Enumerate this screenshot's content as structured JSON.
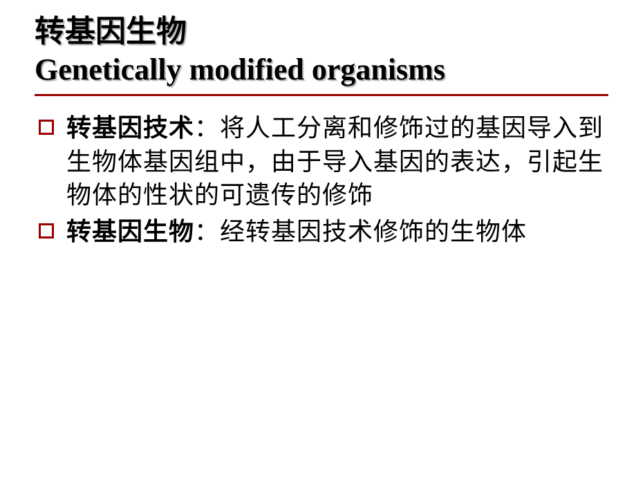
{
  "slide": {
    "title_cn": "转基因生物",
    "title_en": "Genetically modified organisms",
    "divider_color": "#9a0000",
    "bullet_marker_color": "#9a0000",
    "background_color": "#ffffff",
    "text_color": "#000000",
    "title_shadow_color": "#b5b5b5",
    "title_fontsize": 44,
    "body_fontsize": 36,
    "bullets": [
      {
        "term": "转基因技术",
        "separator": "：",
        "definition": "将人工分离和修饰过的基因导入到生物体基因组中，由于导入基因的表达，引起生物体的性状的可遗传的修饰"
      },
      {
        "term": "转基因生物",
        "separator": "：",
        "definition": "经转基因技术修饰的生物体"
      }
    ]
  }
}
